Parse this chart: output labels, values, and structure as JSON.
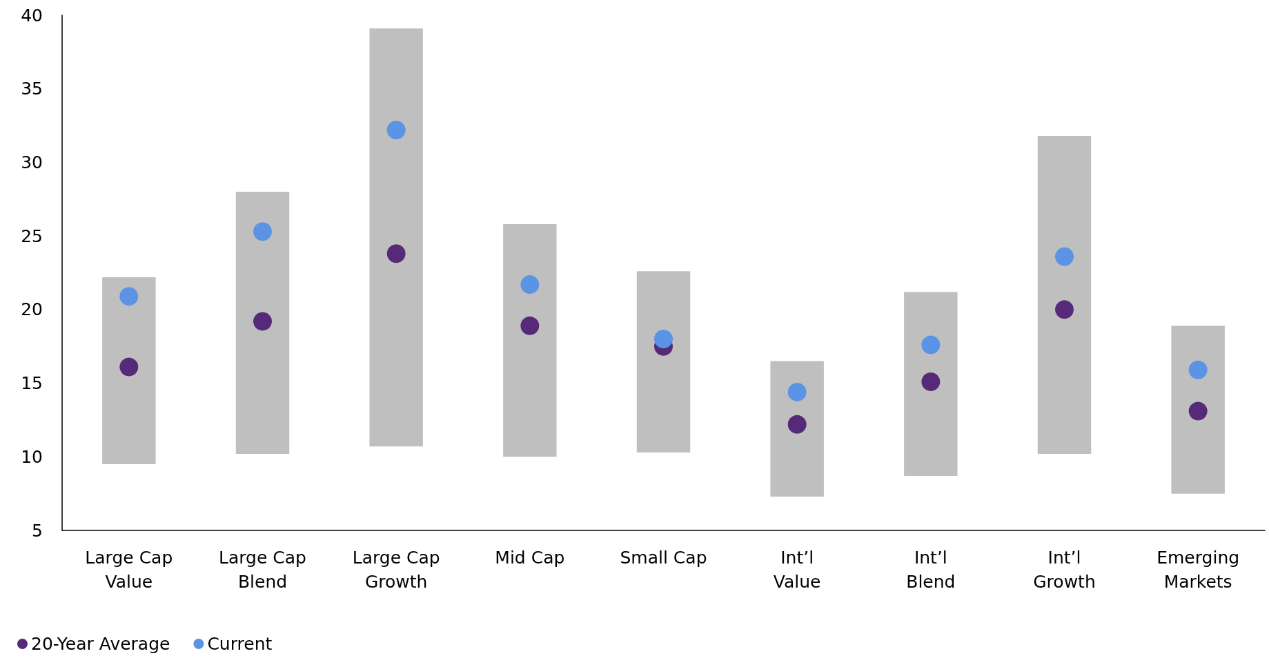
{
  "chart_data": {
    "type": "bar",
    "categories": [
      "Large Cap\nValue",
      "Large Cap\nBlend",
      "Large Cap\nGrowth",
      "Mid Cap",
      "Small Cap",
      "Int’l\nValue",
      "Int’l\nBlend",
      "Int’l\nGrowth",
      "Emerging\nMarkets"
    ],
    "series": [
      {
        "color": "#bfbfbf",
        "base": [
          9.5,
          10.2,
          10.7,
          10.0,
          10.3,
          7.3,
          8.7,
          10.2,
          7.5
        ],
        "values": [
          12.7,
          17.8,
          28.4,
          15.8,
          12.3,
          9.2,
          12.5,
          21.6,
          11.4
        ]
      },
      {
        "type": "scatter",
        "name": "20-Year Average",
        "color": "#562a78",
        "x": [
          "Large Cap\nValue",
          "Large Cap\nBlend",
          "Large Cap\nGrowth",
          "Mid Cap",
          "Small Cap",
          "Int’l\nValue",
          "Int’l\nBlend",
          "Int’l\nGrowth",
          "Emerging\nMarkets"
        ],
        "values": [
          16.1,
          19.2,
          23.8,
          18.9,
          17.5,
          12.2,
          15.1,
          20.0,
          13.1
        ]
      },
      {
        "type": "scatter",
        "name": "Current",
        "color": "#5b93e5",
        "x": [
          "Large Cap\nValue",
          "Large Cap\nBlend",
          "Large Cap\nGrowth",
          "Mid Cap",
          "Small Cap",
          "Int’l\nValue",
          "Int’l\nBlend",
          "Int’l\nGrowth",
          "Emerging\nMarkets"
        ],
        "values": [
          20.9,
          25.3,
          32.2,
          21.7,
          18.0,
          14.4,
          17.6,
          23.6,
          15.9
        ]
      }
    ],
    "ylim": [
      5,
      40
    ],
    "yticks": [
      5,
      10,
      15,
      20,
      25,
      30,
      35,
      40
    ],
    "grid": false,
    "legend": "bottom left",
    "marker": "circle"
  }
}
